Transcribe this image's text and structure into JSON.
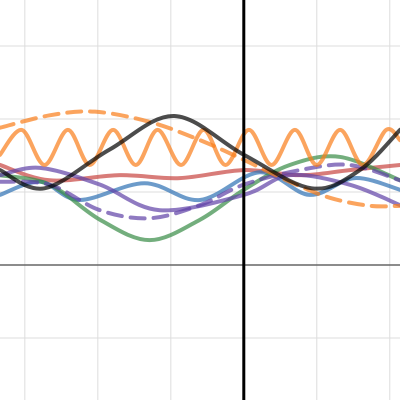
{
  "chart_data": {
    "type": "line",
    "xlim": [
      -3.34,
      2.14
    ],
    "ylim": [
      -1.85,
      3.63
    ],
    "xticks": [
      -3,
      -2,
      -1,
      0,
      1,
      2
    ],
    "yticks": [
      -1,
      0,
      1,
      2,
      3
    ],
    "grid": true,
    "series": [
      {
        "color": "#c74440",
        "dashed": false,
        "x": [
          -3.34,
          -2.66,
          -1.7,
          -0.88,
          0,
          0.77,
          1.45,
          2.14
        ],
        "values": [
          1.37,
          1.16,
          1.23,
          1.19,
          1.3,
          1.23,
          1.3,
          1.37
        ]
      },
      {
        "color": "#2d70b3",
        "dashed": false,
        "x": [
          -3.34,
          -2.79,
          -2.25,
          -1.36,
          -0.6,
          0.22,
          0.9,
          1.52,
          2.14
        ],
        "values": [
          0.96,
          1.14,
          0.89,
          1.12,
          0.89,
          1.27,
          0.96,
          1.19,
          1.03
        ]
      },
      {
        "color": "#388c46",
        "dashed": false,
        "x": [
          -3.34,
          -2.66,
          -1.97,
          -1.29,
          -0.6,
          0,
          0.63,
          1.32,
          2.14
        ],
        "values": [
          1.23,
          1.1,
          0.62,
          0.34,
          0.62,
          1.03,
          1.37,
          1.48,
          1.16
        ]
      },
      {
        "color": "#6042a6",
        "dashed": false,
        "x": [
          -3.34,
          -2.79,
          -1.97,
          -1.15,
          0,
          0.63,
          1.45,
          2.14
        ],
        "values": [
          1.23,
          1.33,
          1.1,
          0.75,
          0.96,
          1.23,
          1.1,
          0.82
        ]
      },
      {
        "color": "#6042a6",
        "dashed": true,
        "x": [
          -3.34,
          -2.66,
          -1.97,
          -1.29,
          -0.6,
          0,
          0.77,
          1.45,
          2.14
        ],
        "values": [
          1.14,
          1.1,
          0.75,
          0.64,
          0.82,
          1.1,
          1.3,
          1.37,
          1.16
        ]
      },
      {
        "color": "#fa7e19",
        "dashed": true,
        "x": [
          -3.34,
          -2.66,
          -2.04,
          -1.29,
          -0.6,
          0,
          0.63,
          1.18,
          1.73,
          2.14
        ],
        "values": [
          1.88,
          2.05,
          2.1,
          1.96,
          1.71,
          1.44,
          1.14,
          0.92,
          0.81,
          0.81
        ]
      },
      {
        "color": "#fa7e19",
        "dashed": false,
        "x": [
          -3.34,
          -3.04,
          -2.73,
          -2.41,
          -2.11,
          -1.79,
          -1.48,
          -1.18,
          -0.86,
          -0.55,
          -0.25,
          0.07,
          0.38,
          0.7,
          1.0,
          1.32,
          1.63,
          1.95,
          2.14
        ],
        "values": [
          1.51,
          1.85,
          1.37,
          1.85,
          1.37,
          1.85,
          1.37,
          1.85,
          1.37,
          1.85,
          1.37,
          1.85,
          1.37,
          1.85,
          1.37,
          1.85,
          1.37,
          1.85,
          1.71
        ]
      },
      {
        "color": "#000000",
        "dashed": false,
        "x": [
          -3.34,
          -2.73,
          -1.84,
          -0.95,
          0,
          0.93,
          1.59,
          2.14
        ],
        "values": [
          1.3,
          1.05,
          1.58,
          2.04,
          1.51,
          1.05,
          1.3,
          1.85
        ]
      }
    ]
  }
}
